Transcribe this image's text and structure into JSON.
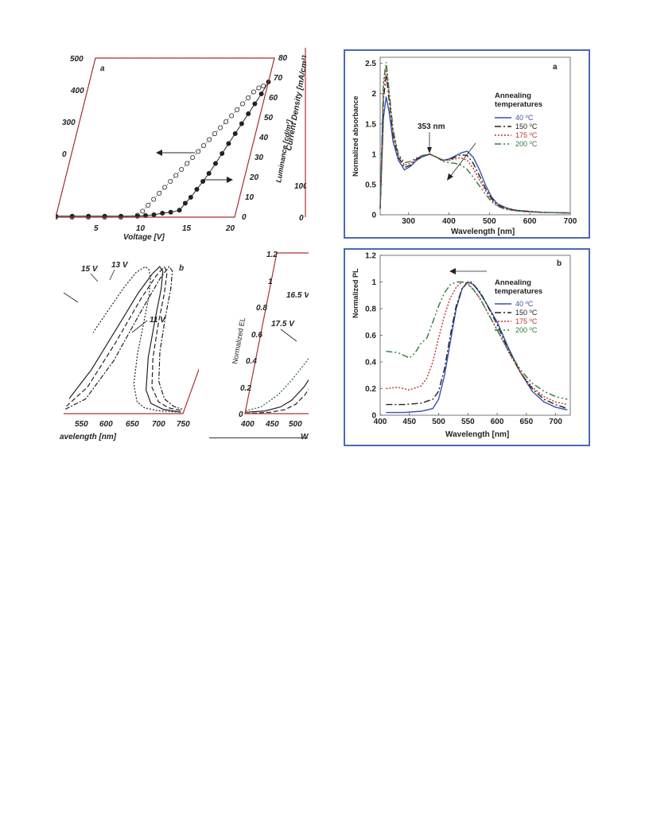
{
  "chart_data": [
    {
      "id": "left_a",
      "type": "scatter",
      "panel_label": "a",
      "xlabel": "Voltage [V]",
      "ylabel_right": "Current Density [mA/cm²]",
      "ylabel_right_2": "Luminance [cd/m²]",
      "xlim": [
        0,
        22
      ],
      "ylim_left": [
        0,
        500
      ],
      "ylim_right": [
        0,
        80
      ],
      "x_ticks": [
        "5",
        "10",
        "15",
        "20"
      ],
      "y_ticks_left": [
        "500",
        "400",
        "300",
        "0"
      ],
      "y_ticks_right": [
        "80",
        "70",
        "60",
        "50",
        "40",
        "30",
        "20",
        "10",
        "0"
      ],
      "series": [
        {
          "marker": "open-circle",
          "x": [
            0,
            2,
            4,
            6,
            8,
            10,
            10.5,
            11,
            11.5,
            12,
            12.5,
            13,
            13.5,
            14,
            14.5,
            15,
            15.5,
            16,
            16.5,
            17,
            17.5,
            18,
            18.5,
            19,
            19.5,
            20,
            20.5,
            21,
            21.5
          ],
          "y": [
            0,
            0,
            0,
            0,
            0,
            1,
            3,
            6,
            9,
            12,
            15,
            18,
            21,
            24,
            27,
            30,
            33,
            36,
            39,
            42,
            45,
            48,
            51,
            54,
            57,
            60,
            63,
            65,
            66
          ]
        },
        {
          "marker": "filled-circle",
          "x": [
            0,
            2,
            4,
            6,
            8,
            10,
            11,
            12,
            13,
            14,
            15,
            15.5,
            16,
            16.5,
            17,
            17.5,
            18,
            18.5,
            19,
            19.5,
            20,
            20.5,
            21,
            21.5,
            22
          ],
          "y": [
            0.5,
            0.5,
            0.5,
            0.5,
            0.5,
            0.5,
            0.8,
            1.2,
            2,
            2.5,
            3.5,
            7,
            10,
            14,
            18,
            22,
            27,
            32,
            37,
            42,
            47,
            52,
            57,
            62,
            68
          ]
        }
      ]
    },
    {
      "id": "left_b",
      "type": "line",
      "panel_label": "b",
      "xlabel": "avelength [nm]",
      "x_ticks": [
        "550",
        "600",
        "650",
        "700",
        "750"
      ],
      "xlim": [
        505,
        755
      ],
      "ylim": [
        0,
        1.05
      ],
      "annotations": [
        "15 V",
        "13 V",
        "11 V"
      ],
      "series": [
        {
          "x": [
            505,
            520,
            535,
            550,
            565,
            575,
            585,
            595,
            605,
            615,
            630,
            650,
            670,
            700,
            750
          ],
          "y": [
            0.55,
            0.7,
            0.85,
            0.96,
            1.0,
            0.98,
            0.92,
            0.8,
            0.6,
            0.4,
            0.2,
            0.08,
            0.04,
            0.02,
            0.01
          ]
        },
        {
          "x": [
            505,
            530,
            555,
            570,
            585,
            595,
            605,
            615,
            625,
            640,
            660,
            680,
            710,
            750
          ],
          "y": [
            0.1,
            0.3,
            0.62,
            0.82,
            0.95,
            1.0,
            0.97,
            0.85,
            0.65,
            0.38,
            0.16,
            0.07,
            0.03,
            0.01
          ]
        },
        {
          "x": [
            505,
            535,
            560,
            580,
            595,
            605,
            615,
            625,
            635,
            650,
            670,
            695,
            720,
            750
          ],
          "y": [
            0.05,
            0.18,
            0.48,
            0.78,
            0.94,
            1.0,
            0.96,
            0.82,
            0.62,
            0.38,
            0.18,
            0.08,
            0.04,
            0.02
          ]
        },
        {
          "x": [
            505,
            540,
            570,
            590,
            605,
            615,
            625,
            635,
            645,
            660,
            680,
            705,
            730,
            750
          ],
          "y": [
            0.03,
            0.1,
            0.36,
            0.7,
            0.92,
            1.0,
            0.97,
            0.85,
            0.66,
            0.42,
            0.22,
            0.1,
            0.05,
            0.03
          ]
        }
      ]
    },
    {
      "id": "left_b2",
      "type": "line",
      "ylabel": "Normalized EL",
      "x_ticks": [
        "400",
        "450",
        "500"
      ],
      "y_ticks": [
        "1.2",
        "1",
        "0.8",
        "0.6",
        "0.4",
        "0.2",
        "0"
      ],
      "xlabel": "W",
      "xlim": [
        390,
        520
      ],
      "ylim": [
        0,
        1.2
      ],
      "annotations": [
        "16.5 V",
        "17.5 V"
      ],
      "series": [
        {
          "x": [
            390,
            420,
            450,
            470,
            490,
            505,
            520
          ],
          "y": [
            0.02,
            0.05,
            0.14,
            0.24,
            0.36,
            0.46,
            0.58
          ]
        },
        {
          "x": [
            390,
            430,
            460,
            480,
            500,
            520
          ],
          "y": [
            0.01,
            0.02,
            0.05,
            0.1,
            0.2,
            0.36
          ]
        },
        {
          "x": [
            390,
            440,
            470,
            490,
            505,
            520
          ],
          "y": [
            0.0,
            0.01,
            0.03,
            0.07,
            0.14,
            0.26
          ]
        }
      ]
    },
    {
      "id": "right_a",
      "type": "line",
      "panel_label": "a",
      "xlabel": "Wavelength [nm]",
      "ylabel": "Normalized absorbance",
      "xlim": [
        230,
        700
      ],
      "ylim": [
        0,
        2.6
      ],
      "x_ticks": [
        "300",
        "400",
        "500",
        "600",
        "700"
      ],
      "y_ticks": [
        "0",
        "0.5",
        "1",
        "1.5",
        "2",
        "2.5"
      ],
      "annotation": "353 nm",
      "legend_title": "Annealing temperatures",
      "legend_title_lines": [
        "Annealing",
        "temperatures"
      ],
      "series": [
        {
          "name": "40 °C",
          "name_base": "40 ",
          "name_sup": "o",
          "name_unit": "C",
          "color": "#3a4fb0",
          "dash": "",
          "x": [
            230,
            238,
            245,
            252,
            262,
            275,
            290,
            305,
            320,
            335,
            353,
            370,
            385,
            400,
            415,
            430,
            445,
            460,
            475,
            490,
            505,
            520,
            540,
            560,
            590,
            630,
            700
          ],
          "y": [
            0.1,
            1.6,
            1.95,
            1.7,
            1.2,
            0.9,
            0.74,
            0.8,
            0.9,
            0.96,
            1.0,
            0.95,
            0.9,
            0.92,
            0.97,
            1.02,
            1.05,
            0.95,
            0.75,
            0.5,
            0.3,
            0.18,
            0.12,
            0.08,
            0.06,
            0.04,
            0.03
          ]
        },
        {
          "name": "150 °C",
          "name_base": "150 ",
          "name_sup": "o",
          "name_unit": "C",
          "color": "#222222",
          "dash": "8,3,2,3",
          "x": [
            230,
            238,
            245,
            252,
            262,
            275,
            290,
            305,
            320,
            335,
            353,
            370,
            385,
            400,
            415,
            430,
            445,
            460,
            475,
            490,
            505,
            520,
            540,
            560,
            590,
            630,
            700
          ],
          "y": [
            0.1,
            1.9,
            2.3,
            1.9,
            1.3,
            0.95,
            0.78,
            0.82,
            0.92,
            0.97,
            1.0,
            0.95,
            0.9,
            0.91,
            0.95,
            0.99,
            0.98,
            0.85,
            0.65,
            0.44,
            0.27,
            0.16,
            0.11,
            0.08,
            0.06,
            0.04,
            0.03
          ]
        },
        {
          "name": "175 °C",
          "name_base": "175 ",
          "name_sup": "o",
          "name_unit": "C",
          "color": "#c0302c",
          "dash": "2,2",
          "x": [
            230,
            238,
            245,
            252,
            262,
            275,
            290,
            305,
            320,
            335,
            353,
            370,
            385,
            400,
            415,
            430,
            445,
            460,
            475,
            490,
            505,
            520,
            540,
            560,
            590,
            630,
            700
          ],
          "y": [
            0.1,
            2.1,
            2.45,
            2.0,
            1.35,
            0.98,
            0.82,
            0.85,
            0.93,
            0.98,
            1.0,
            0.95,
            0.9,
            0.9,
            0.92,
            0.94,
            0.9,
            0.77,
            0.58,
            0.4,
            0.25,
            0.15,
            0.1,
            0.07,
            0.05,
            0.04,
            0.03
          ]
        },
        {
          "name": "200 °C",
          "name_base": "200 ",
          "name_sup": "o",
          "name_unit": "C",
          "color": "#2c7a3a",
          "dash": "8,3,2,3,2,3",
          "x": [
            230,
            238,
            245,
            252,
            262,
            275,
            290,
            305,
            320,
            335,
            353,
            370,
            385,
            400,
            415,
            430,
            445,
            460,
            475,
            490,
            505,
            520,
            540,
            560,
            590,
            630,
            700
          ],
          "y": [
            0.1,
            2.2,
            2.52,
            2.05,
            1.4,
            1.0,
            0.86,
            0.88,
            0.94,
            0.98,
            1.0,
            0.95,
            0.88,
            0.86,
            0.85,
            0.82,
            0.75,
            0.62,
            0.48,
            0.34,
            0.22,
            0.14,
            0.09,
            0.07,
            0.05,
            0.04,
            0.03
          ]
        }
      ]
    },
    {
      "id": "right_b",
      "type": "line",
      "panel_label": "b",
      "xlabel": "Wavelength [nm]",
      "ylabel": "Normalized PL",
      "xlim": [
        400,
        725
      ],
      "ylim": [
        0,
        1.2
      ],
      "x_ticks": [
        "400",
        "450",
        "500",
        "550",
        "600",
        "650",
        "700"
      ],
      "y_ticks": [
        "0",
        "0.2",
        "0.4",
        "0.6",
        "0.8",
        "1",
        "1.2"
      ],
      "legend_title": "Annealing temperatures",
      "legend_title_lines": [
        "Annealing",
        "temperatures"
      ],
      "series": [
        {
          "name": "40 °C",
          "name_base": "40 ",
          "name_sup": "o",
          "name_unit": "C",
          "color": "#3a4fb0",
          "dash": "",
          "x": [
            410,
            440,
            470,
            490,
            500,
            510,
            520,
            530,
            540,
            550,
            560,
            570,
            580,
            600,
            620,
            640,
            660,
            680,
            700,
            720
          ],
          "y": [
            0.02,
            0.02,
            0.03,
            0.05,
            0.12,
            0.3,
            0.55,
            0.8,
            0.95,
            1.0,
            0.98,
            0.92,
            0.85,
            0.7,
            0.5,
            0.32,
            0.18,
            0.1,
            0.06,
            0.04
          ]
        },
        {
          "name": "150 °C",
          "name_base": "150 ",
          "name_sup": "o",
          "name_unit": "C",
          "color": "#222222",
          "dash": "8,3,2,3",
          "x": [
            410,
            440,
            470,
            490,
            500,
            510,
            520,
            530,
            540,
            550,
            555,
            570,
            580,
            600,
            620,
            640,
            660,
            680,
            700,
            720
          ],
          "y": [
            0.08,
            0.08,
            0.09,
            0.12,
            0.18,
            0.35,
            0.6,
            0.82,
            0.95,
            1.0,
            1.0,
            0.93,
            0.85,
            0.68,
            0.48,
            0.32,
            0.2,
            0.12,
            0.08,
            0.05
          ]
        },
        {
          "name": "175 °C",
          "name_base": "175 ",
          "name_sup": "o",
          "name_unit": "C",
          "color": "#c0302c",
          "dash": "2,2",
          "x": [
            410,
            430,
            450,
            470,
            480,
            490,
            500,
            510,
            520,
            530,
            540,
            550,
            560,
            570,
            580,
            600,
            620,
            640,
            660,
            680,
            700,
            720
          ],
          "y": [
            0.2,
            0.21,
            0.19,
            0.22,
            0.28,
            0.4,
            0.58,
            0.75,
            0.88,
            0.96,
            1.0,
            0.99,
            0.94,
            0.88,
            0.8,
            0.64,
            0.47,
            0.32,
            0.21,
            0.14,
            0.1,
            0.08
          ]
        },
        {
          "name": "200 °C",
          "name_base": "200 ",
          "name_sup": "o",
          "name_unit": "C",
          "color": "#2c7a3a",
          "dash": "8,3,2,3,2,3",
          "x": [
            410,
            430,
            450,
            460,
            470,
            480,
            490,
            500,
            510,
            520,
            530,
            540,
            550,
            560,
            570,
            580,
            600,
            620,
            640,
            660,
            680,
            700,
            720
          ],
          "y": [
            0.48,
            0.47,
            0.43,
            0.47,
            0.54,
            0.58,
            0.7,
            0.82,
            0.92,
            0.98,
            1.0,
            1.0,
            0.98,
            0.94,
            0.88,
            0.8,
            0.64,
            0.48,
            0.34,
            0.24,
            0.18,
            0.14,
            0.12
          ]
        }
      ]
    }
  ]
}
